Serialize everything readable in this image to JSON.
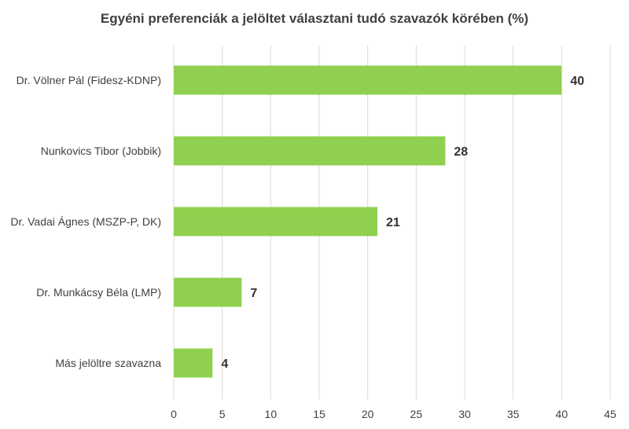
{
  "chart_data": {
    "type": "bar",
    "orientation": "horizontal",
    "title": "Egyéni preferenciák a jelöltet választani tudó szavazók körében (%)",
    "categories": [
      "Dr. Völner Pál (Fidesz-KDNP)",
      "Nunkovics Tibor (Jobbik)",
      "Dr. Vadai Ágnes (MSZP-P, DK)",
      "Dr. Munkácsy Béla (LMP)",
      "Más jelöltre szavazna"
    ],
    "values": [
      40,
      28,
      21,
      7,
      4
    ],
    "data_labels": [
      "40",
      "28",
      "21",
      "7",
      "4"
    ],
    "xlim": [
      0,
      45
    ],
    "xticks": [
      0,
      5,
      10,
      15,
      20,
      25,
      30,
      35,
      40,
      45
    ],
    "xtick_labels": [
      "0",
      "5",
      "10",
      "15",
      "20",
      "25",
      "30",
      "35",
      "40",
      "45"
    ],
    "grid": "vertical",
    "bar_color": "#8fd14f",
    "legend": "none"
  }
}
